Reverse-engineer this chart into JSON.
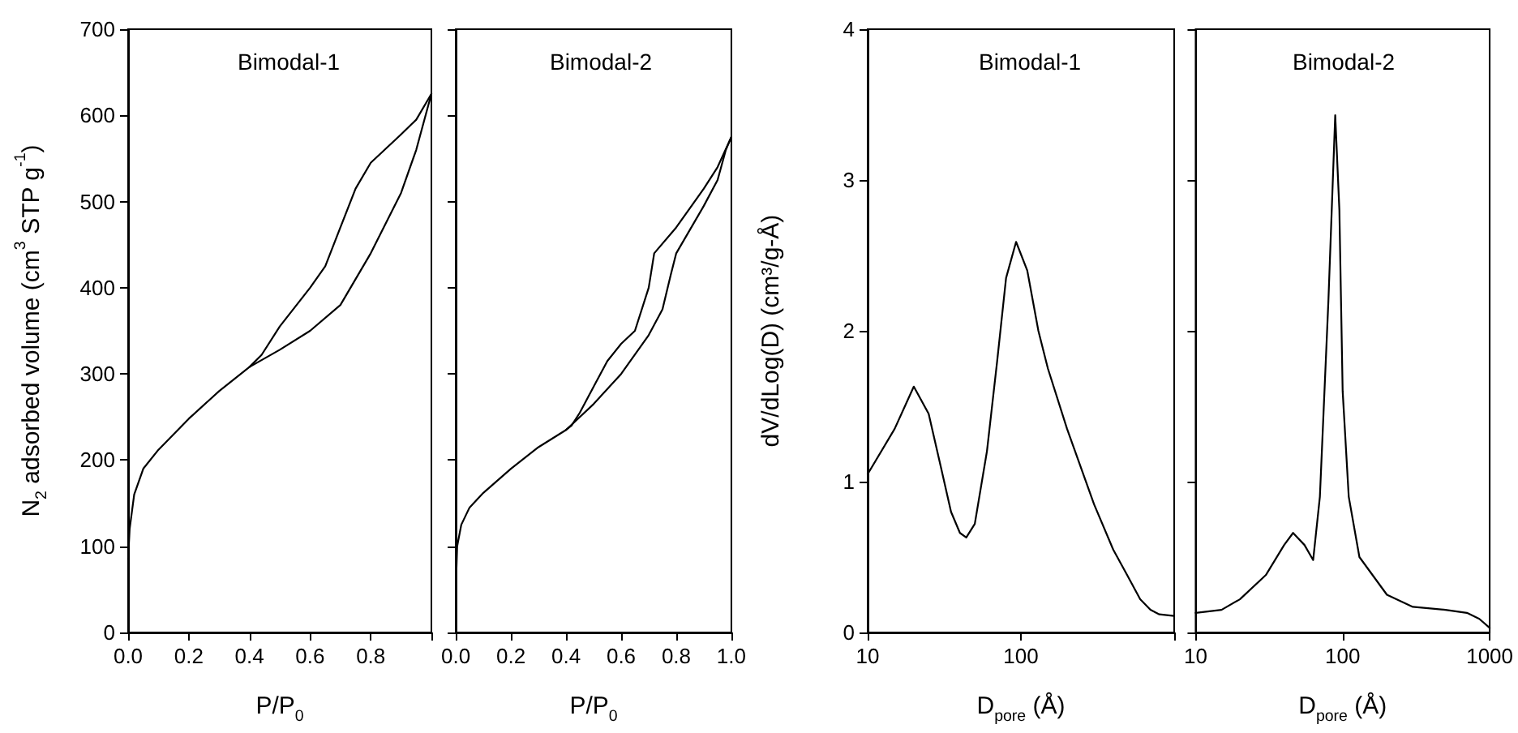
{
  "chart_data": [
    {
      "type": "line",
      "title": "Bimodal-1",
      "xlabel": "P/P$_{0}$",
      "ylabel": "N$_{2}$ adsorbed volume (cm$^{3}$ STP g$^{-1}$)",
      "marker": "none",
      "xlim": [
        0,
        1
      ],
      "xticks": [
        {
          "value": 0,
          "label": "0.0"
        },
        {
          "value": 0.2,
          "label": "0.2"
        },
        {
          "value": 0.4,
          "label": "0.4"
        },
        {
          "value": 0.6,
          "label": "0.6"
        },
        {
          "value": 0.8,
          "label": "0.8"
        },
        {
          "value": 1,
          "label": null
        }
      ],
      "ylim": [
        0,
        700
      ],
      "yticks": [
        0,
        100,
        200,
        300,
        400,
        500,
        600,
        700
      ],
      "series": [
        {
          "color": "#000000",
          "x": [
            0,
            0.005,
            0.02,
            0.05,
            0.1,
            0.2,
            0.3,
            0.4,
            0.5,
            0.6,
            0.7,
            0.8,
            0.9,
            0.95,
            1.0
          ],
          "values": [
            85,
            120,
            160,
            190,
            212,
            248,
            280,
            308,
            328,
            350,
            380,
            440,
            510,
            560,
            625
          ]
        },
        {
          "color": "#000000",
          "x": [
            1.0,
            0.95,
            0.9,
            0.8,
            0.75,
            0.7,
            0.65,
            0.6,
            0.5,
            0.44,
            0.4
          ],
          "values": [
            625,
            595,
            578,
            545,
            515,
            470,
            425,
            400,
            355,
            322,
            308
          ]
        }
      ]
    },
    {
      "type": "line",
      "title": "Bimodal-2",
      "xlabel": "P/P$_{0}$",
      "marker": "none",
      "tick_labels": "x",
      "xlim": [
        0,
        1
      ],
      "xticks": [
        {
          "value": 0,
          "label": "0.0"
        },
        {
          "value": 0.2,
          "label": "0.2"
        },
        {
          "value": 0.4,
          "label": "0.4"
        },
        {
          "value": 0.6,
          "label": "0.6"
        },
        {
          "value": 0.8,
          "label": "0.8"
        },
        {
          "value": 1,
          "label": "1.0"
        }
      ],
      "ylim": [
        0,
        700
      ],
      "yticks": [
        0,
        100,
        200,
        300,
        400,
        500,
        600,
        700
      ],
      "series": [
        {
          "color": "#000000",
          "x": [
            0,
            0.005,
            0.02,
            0.05,
            0.1,
            0.2,
            0.3,
            0.4,
            0.5,
            0.6,
            0.7,
            0.75,
            0.78,
            0.8,
            0.9,
            0.95,
            0.98,
            1.0
          ],
          "values": [
            50,
            100,
            125,
            145,
            162,
            190,
            215,
            235,
            265,
            300,
            345,
            375,
            415,
            440,
            495,
            525,
            560,
            575
          ]
        },
        {
          "color": "#000000",
          "x": [
            1.0,
            0.95,
            0.9,
            0.8,
            0.72,
            0.7,
            0.65,
            0.6,
            0.55,
            0.5,
            0.45,
            0.42,
            0.4
          ],
          "values": [
            575,
            540,
            515,
            470,
            440,
            400,
            350,
            335,
            315,
            285,
            255,
            240,
            235
          ]
        }
      ]
    },
    {
      "type": "line",
      "title": "Bimodal-1",
      "xlabel": "D$_{pore}$ (Å)",
      "ylabel": "dV/dLog(D) (cm³/g-Å)",
      "marker": "none",
      "log": "x",
      "xlim": [
        10,
        1000
      ],
      "xticks": [
        10,
        100,
        {
          "value": 1000,
          "label": null
        }
      ],
      "ylim": [
        0,
        4
      ],
      "yticks": [
        0,
        1,
        2,
        3,
        4
      ],
      "series": [
        {
          "color": "#000000",
          "x": [
            10,
            15,
            20,
            25,
            30,
            35,
            40,
            44,
            50,
            60,
            70,
            80,
            93,
            110,
            130,
            150,
            200,
            300,
            400,
            500,
            600,
            700,
            800,
            1000
          ],
          "values": [
            1.05,
            1.35,
            1.63,
            1.45,
            1.1,
            0.8,
            0.66,
            0.63,
            0.72,
            1.2,
            1.8,
            2.35,
            2.59,
            2.4,
            2.0,
            1.75,
            1.35,
            0.85,
            0.55,
            0.37,
            0.22,
            0.15,
            0.12,
            0.11
          ]
        }
      ]
    },
    {
      "type": "line",
      "title": "Bimodal-2",
      "xlabel": "D$_{pore}$ (Å)",
      "marker": "none",
      "log": "x",
      "tick_labels": "x",
      "xlim": [
        10,
        1000
      ],
      "xticks": [
        10,
        100,
        1000
      ],
      "ylim": [
        0,
        4
      ],
      "yticks": [
        0,
        1,
        2,
        3,
        4
      ],
      "series": [
        {
          "color": "#000000",
          "x": [
            10,
            15,
            20,
            30,
            40,
            46,
            55,
            63,
            70,
            80,
            89,
            95,
            100,
            110,
            130,
            200,
            300,
            500,
            700,
            850,
            1000
          ],
          "values": [
            0.13,
            0.15,
            0.22,
            0.38,
            0.58,
            0.66,
            0.58,
            0.48,
            0.9,
            2.2,
            3.43,
            2.8,
            1.6,
            0.9,
            0.5,
            0.25,
            0.17,
            0.15,
            0.13,
            0.09,
            0.03
          ]
        }
      ]
    }
  ]
}
